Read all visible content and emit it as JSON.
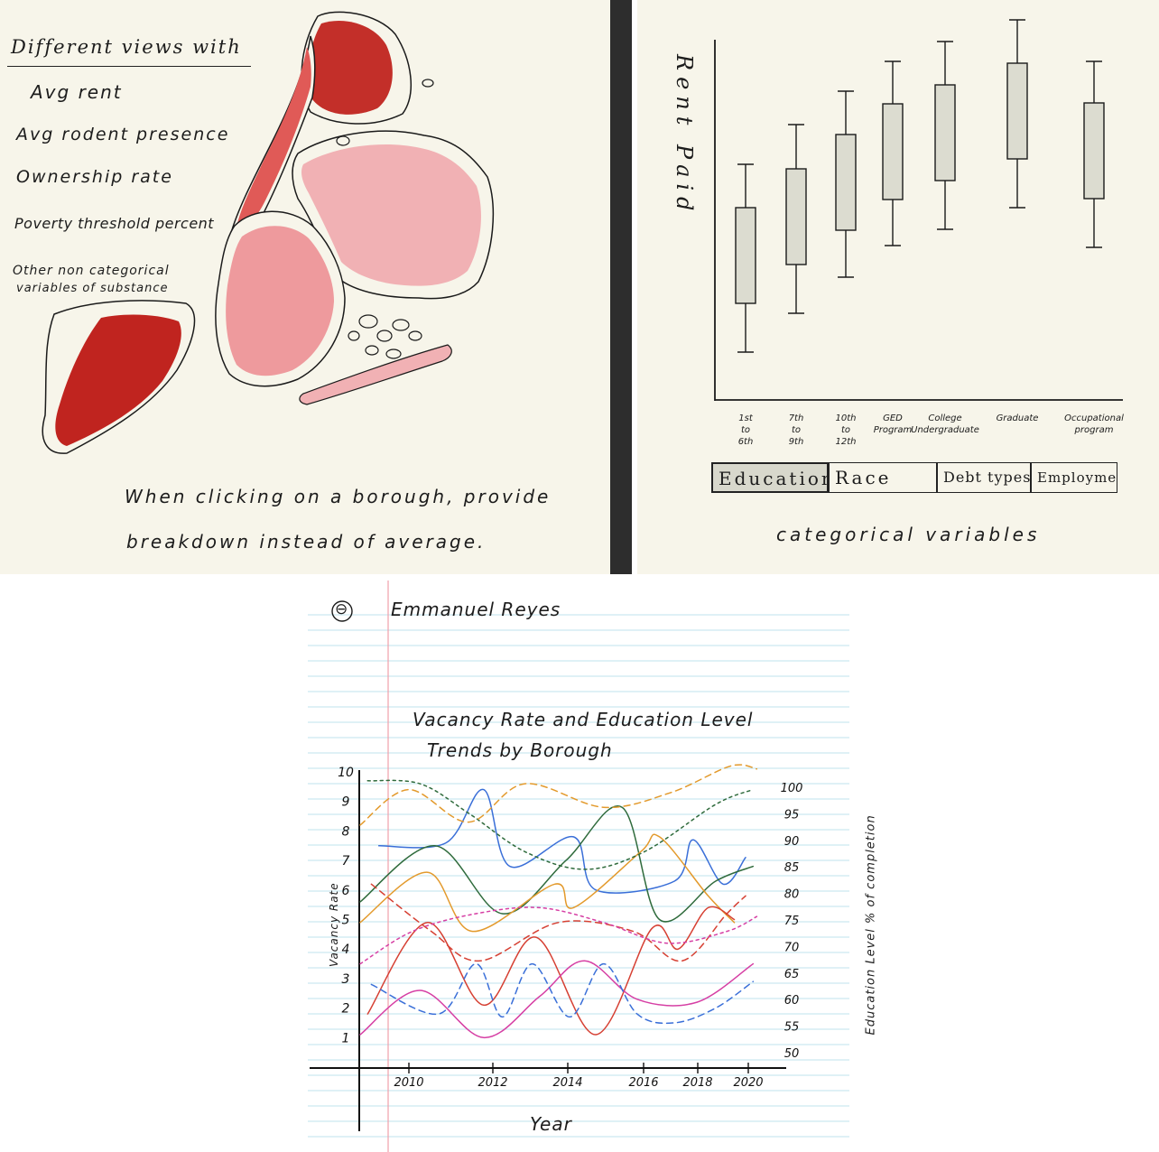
{
  "map_panel": {
    "heading": "Different views with",
    "options": [
      "Avg rent",
      "Avg rodent presence",
      "Ownership rate",
      "Poverty threshold percent"
    ],
    "other_line1": "Other non categorical",
    "other_line2": "variables of substance",
    "note_line1": "When clicking on a borough, provide",
    "note_line2": "breakdown instead of average."
  },
  "boxplot_panel": {
    "ylabel": "Rent Paid",
    "categories": [
      "1st to 6th",
      "7th to 9th",
      "10th to 12th",
      "GED Program",
      "College Undergraduate",
      "Graduate",
      "Occupational program"
    ],
    "tabs": [
      "Education",
      "Race",
      "Debt types",
      "Employment"
    ],
    "caption": "categorical variables"
  },
  "notebook": {
    "marker": "⊖",
    "author": "Emmanuel Reyes",
    "title_line1": "Vacancy Rate and Education Level",
    "title_line2": "Trends by Borough"
  },
  "chart_data": {
    "type": "line",
    "xlabel": "Year",
    "ylabel": "Vacancy Rate",
    "y2label": "Education Level % of completion",
    "x_ticks": [
      "2010",
      "2012",
      "2014",
      "2016",
      "2018",
      "2020"
    ],
    "ylim": [
      0,
      10
    ],
    "y_ticks": [
      "1",
      "2",
      "3",
      "4",
      "5",
      "6",
      "7",
      "8",
      "9",
      "10"
    ],
    "y2lim": [
      50,
      100
    ],
    "y2_ticks": [
      "50",
      "55",
      "60",
      "65",
      "70",
      "75",
      "80",
      "85",
      "90",
      "95",
      "100"
    ],
    "series": [
      {
        "color": "#3a6fd8",
        "style": "solid",
        "x": [
          2009.5,
          2011.3,
          2012.3,
          2013.0,
          2014.7,
          2015.3,
          2017.4,
          2017.9,
          2018.7,
          2019.3
        ],
        "y": [
          7.5,
          7.6,
          9.4,
          6.8,
          7.8,
          6.0,
          6.3,
          7.7,
          6.2,
          7.1
        ]
      },
      {
        "color": "#2f6b3c",
        "style": "solid",
        "x": [
          2009.0,
          2011.0,
          2012.8,
          2014.5,
          2016.0,
          2017.0,
          2018.5,
          2019.5
        ],
        "y": [
          5.6,
          7.5,
          5.2,
          7.0,
          8.8,
          5.0,
          6.3,
          6.8
        ]
      },
      {
        "color": "#e39a2c",
        "style": "solid",
        "x": [
          2009.0,
          2010.8,
          2012.0,
          2014.2,
          2014.7,
          2016.5,
          2017.0,
          2018.3,
          2019.0
        ],
        "y": [
          4.9,
          6.6,
          4.6,
          6.2,
          5.4,
          7.3,
          7.8,
          5.8,
          4.9
        ]
      },
      {
        "color": "#d64033",
        "style": "solid",
        "x": [
          2009.2,
          2010.8,
          2012.3,
          2013.7,
          2015.3,
          2016.8,
          2017.5,
          2018.3,
          2019.0
        ],
        "y": [
          1.8,
          4.9,
          2.1,
          4.4,
          1.1,
          4.7,
          4.0,
          5.4,
          5.0
        ]
      },
      {
        "color": "#d63fa4",
        "style": "solid",
        "x": [
          2009.0,
          2010.6,
          2012.3,
          2013.8,
          2015.0,
          2016.4,
          2018.0,
          2019.5
        ],
        "y": [
          1.1,
          2.6,
          1.0,
          2.4,
          3.6,
          2.3,
          2.2,
          3.5
        ]
      },
      {
        "color": "#3a6fd8",
        "style": "dashed",
        "x": [
          2009.3,
          2011.1,
          2012.1,
          2012.8,
          2013.6,
          2014.6,
          2015.5,
          2016.4,
          2017.4,
          2018.5,
          2019.5
        ],
        "y": [
          2.8,
          1.8,
          3.5,
          1.7,
          3.5,
          1.7,
          3.5,
          1.8,
          1.5,
          2.0,
          2.9
        ]
      },
      {
        "color": "#2f6b3c",
        "style": "dotted",
        "x": [
          2009.2,
          2010.6,
          2011.9,
          2013.4,
          2015.0,
          2016.6,
          2018.5,
          2019.5
        ],
        "y": [
          9.7,
          9.6,
          8.6,
          7.3,
          6.7,
          7.3,
          8.9,
          9.4
        ]
      },
      {
        "color": "#e39a2c",
        "style": "dashed",
        "x": [
          2009.0,
          2010.3,
          2011.9,
          2013.4,
          2015.5,
          2017.3,
          2018.9,
          2019.6
        ],
        "y": [
          8.2,
          9.4,
          8.3,
          9.6,
          8.8,
          9.3,
          10.2,
          10.1
        ]
      },
      {
        "color": "#d64033",
        "style": "dashed",
        "x": [
          2009.3,
          2010.9,
          2012.2,
          2014.3,
          2016.3,
          2017.6,
          2018.8,
          2019.3
        ],
        "y": [
          6.2,
          4.6,
          3.6,
          4.9,
          4.6,
          3.6,
          5.2,
          5.8
        ]
      },
      {
        "color": "#d63fa4",
        "style": "dotted",
        "x": [
          2009.0,
          2010.4,
          2012.1,
          2013.8,
          2015.5,
          2017.2,
          2018.8,
          2019.6
        ],
        "y": [
          3.5,
          4.6,
          5.2,
          5.4,
          4.9,
          4.2,
          4.6,
          5.1
        ]
      }
    ]
  }
}
